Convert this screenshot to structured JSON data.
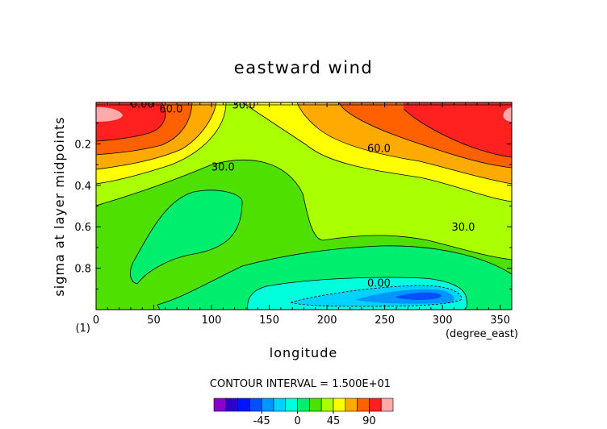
{
  "chart_data": {
    "type": "heatmap",
    "title": "eastward wind",
    "xlabel": "longitude",
    "ylabel": "sigma at layer midpoints",
    "x_unit": "(degree_east)",
    "y_unit": "(1)",
    "xlim": [
      0,
      360
    ],
    "ylim": [
      1,
      0
    ],
    "x_ticks": [
      "0",
      "50",
      "100",
      "150",
      "200",
      "250",
      "300",
      "350"
    ],
    "y_ticks": [
      "0.2",
      "0.4",
      "0.6",
      "0.8"
    ],
    "contour_interval_text": "CONTOUR INTERVAL = 1.500E+01",
    "contour_labels": [
      {
        "text": "0.00",
        "x": 40,
        "y": 0.005
      },
      {
        "text": "60.0",
        "x": 65,
        "y": 0.03
      },
      {
        "text": "30.0",
        "x": 128,
        "y": 0.01
      },
      {
        "text": "60.0",
        "x": 245,
        "y": 0.22
      },
      {
        "text": "30.0",
        "x": 110,
        "y": 0.31
      },
      {
        "text": "30.0",
        "x": 318,
        "y": 0.6
      },
      {
        "text": "0.00",
        "x": 245,
        "y": 0.87
      }
    ],
    "colorbar": {
      "tick_labels": [
        "-45",
        "0",
        "45",
        "90"
      ],
      "tick_values": [
        -45,
        0,
        45,
        90
      ],
      "levels": [
        -90,
        -75,
        -60,
        -45,
        -30,
        -15,
        0,
        15,
        30,
        45,
        60,
        75,
        90,
        105
      ],
      "colors": [
        "#8a00c8",
        "#2d00c8",
        "#0014ff",
        "#0050ff",
        "#0096ff",
        "#00d2ff",
        "#00ffdc",
        "#00ee6e",
        "#4ee000",
        "#aaff00",
        "#ffff00",
        "#ffaa00",
        "#ff6000",
        "#ff2020",
        "#ffaaaa"
      ]
    }
  }
}
